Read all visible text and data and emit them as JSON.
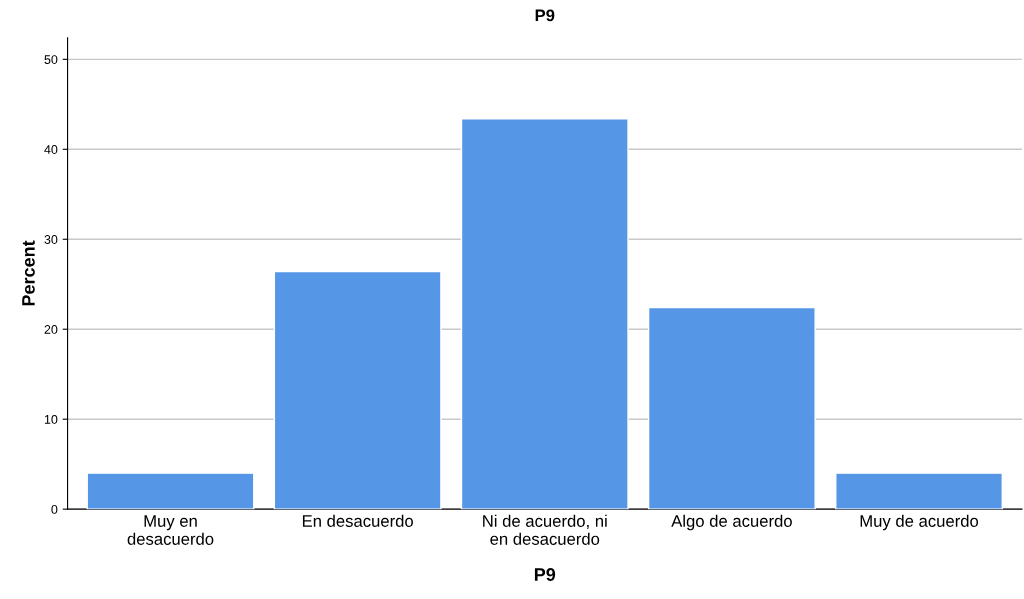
{
  "chart_data": {
    "type": "bar",
    "title": "P9",
    "xlabel": "P9",
    "ylabel": "Percent",
    "categories": [
      "Muy en\ndesacuerdo",
      "En desacuerdo",
      "Ni de acuerdo, ni\nen desacuerdo",
      "Algo de acuerdo",
      "Muy de acuerdo"
    ],
    "values": [
      4.0,
      26.4,
      43.4,
      22.4,
      4.0
    ],
    "color": "#5596e6",
    "ylim": [
      0,
      52.4
    ],
    "yticks": [
      0,
      10,
      20,
      30,
      40,
      50
    ],
    "grid": "y",
    "legend": false
  }
}
